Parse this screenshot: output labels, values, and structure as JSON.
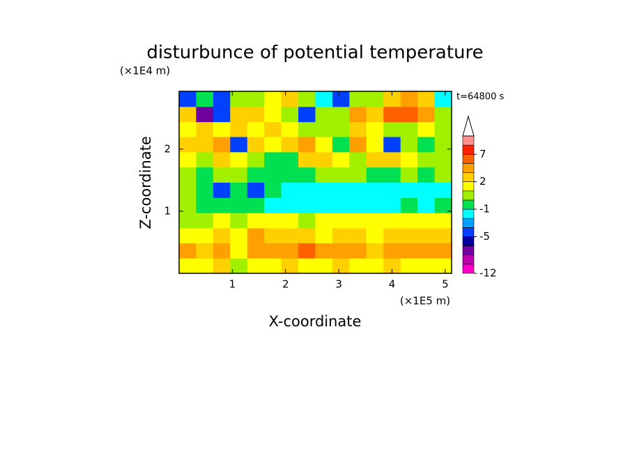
{
  "chart_data": {
    "type": "contour",
    "title": "disturbunce of potential temperature",
    "xlabel": "X-coordinate",
    "ylabel": "Z-coordinate",
    "x_unit": "(×1E5 m)",
    "y_unit": "(×1E4 m)",
    "annotation": "t=64800 s",
    "xlim": [
      0,
      5.12
    ],
    "ylim": [
      0,
      2.93
    ],
    "xticks": [
      1,
      2,
      3,
      4,
      5
    ],
    "yticks": [
      1,
      2
    ],
    "x": [
      0.16,
      0.48,
      0.8,
      1.12,
      1.44,
      1.76,
      2.08,
      2.4,
      2.72,
      3.04,
      3.36,
      3.68,
      4.0,
      4.32,
      4.64,
      4.96
    ],
    "y": [
      0.12,
      0.37,
      0.61,
      0.85,
      1.1,
      1.34,
      1.59,
      1.83,
      2.08,
      2.32,
      2.56,
      2.81
    ],
    "z": [
      [
        1.5,
        1.5,
        2.5,
        0.5,
        1.5,
        1.5,
        2.5,
        1.5,
        1.5,
        2.5,
        1.5,
        1.5,
        2.5,
        1.5,
        1.5,
        1.5
      ],
      [
        4,
        2.5,
        4,
        1.5,
        4,
        4,
        4,
        6,
        4,
        4,
        4,
        2.5,
        4,
        4,
        4,
        4
      ],
      [
        1.5,
        1.5,
        2.5,
        1.5,
        4,
        2.5,
        2.5,
        2.5,
        1.5,
        2.5,
        2.5,
        1.5,
        2.5,
        2.5,
        2.5,
        2.5
      ],
      [
        0.5,
        0.5,
        1.5,
        0.5,
        1.5,
        1.5,
        1.5,
        0.5,
        1.5,
        1.5,
        1.5,
        1.5,
        1.5,
        1.5,
        1.5,
        1.5
      ],
      [
        0.5,
        -0.5,
        -0.5,
        -0.5,
        -0.5,
        -1.5,
        -1.5,
        -1.5,
        -1.5,
        -1.5,
        -1.5,
        -1.5,
        -1.5,
        -0.5,
        -1.5,
        -0.5
      ],
      [
        0.5,
        -0.5,
        -4,
        -0.5,
        -4,
        -0.5,
        -1.5,
        -1.5,
        -1.5,
        -1.5,
        -1.5,
        -1.5,
        -1.5,
        -1.5,
        -1.5,
        -1.5
      ],
      [
        0.5,
        -0.5,
        0.5,
        0.5,
        -0.5,
        -0.5,
        -0.5,
        -0.5,
        0.5,
        0.5,
        0.5,
        -0.5,
        -0.5,
        0.5,
        -0.5,
        0.5
      ],
      [
        1.5,
        0.5,
        2.5,
        1.5,
        0.5,
        -0.5,
        -0.5,
        2.5,
        2.5,
        1.5,
        0.5,
        2.5,
        2.5,
        1.5,
        0.5,
        0.5
      ],
      [
        2.5,
        2.5,
        4,
        -4,
        2.5,
        1.5,
        2.5,
        4,
        1.5,
        -0.5,
        4,
        1.5,
        -4,
        0.5,
        -0.5,
        0.5
      ],
      [
        1.5,
        2.5,
        1.5,
        2.5,
        1.5,
        2.5,
        1.5,
        0.5,
        0.5,
        0.5,
        2.5,
        1.5,
        0.5,
        0.5,
        1.5,
        0.5
      ],
      [
        2.5,
        -7,
        -4,
        2.5,
        2.5,
        1.5,
        0.5,
        -4,
        0.5,
        0.5,
        4,
        2.5,
        6,
        6,
        4,
        0.5
      ],
      [
        -4,
        -0.5,
        -4,
        0.5,
        0.5,
        1.5,
        2.5,
        0.5,
        -1.5,
        -4,
        0.5,
        0.5,
        2.5,
        4,
        2.5,
        -1.5
      ]
    ],
    "colorbar": {
      "levels": [
        -12,
        -10,
        -8,
        -6,
        -5,
        -3,
        -2,
        -1,
        0,
        1,
        2,
        3,
        5,
        7,
        9,
        11
      ],
      "colors": [
        "#ff00c8",
        "#c000b0",
        "#7000a0",
        "#0000a0",
        "#0040ff",
        "#00a0ff",
        "#00ffff",
        "#00e050",
        "#a0f000",
        "#ffff00",
        "#ffd000",
        "#ffa000",
        "#ff6000",
        "#ff2000",
        "#ff9090"
      ],
      "extend_color": "#ffffff",
      "ticks": [
        -12,
        -5,
        -1,
        2,
        7
      ]
    }
  }
}
